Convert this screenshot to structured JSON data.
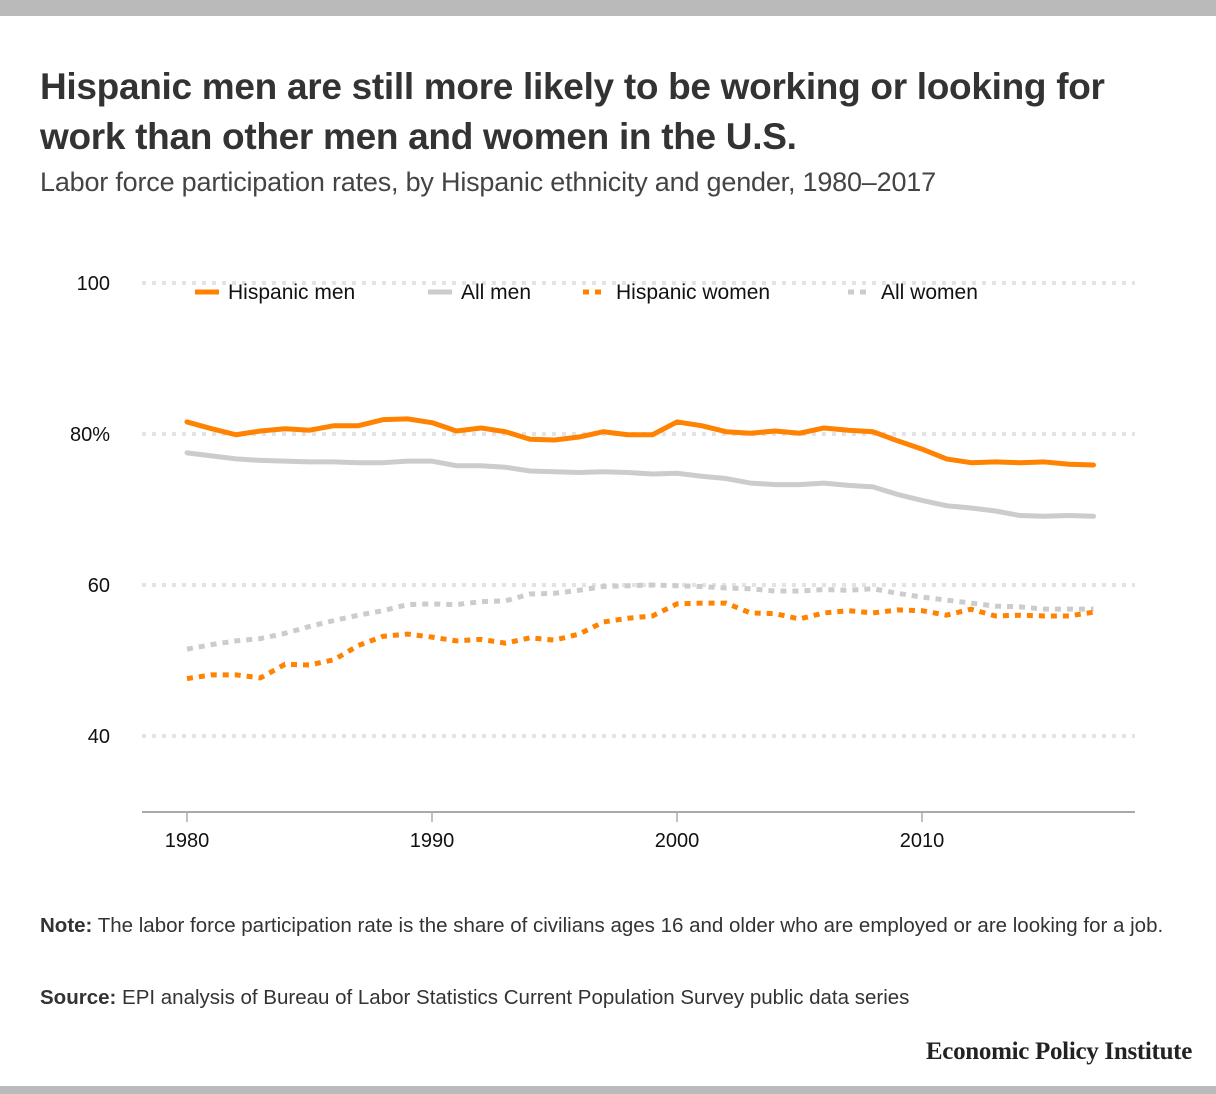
{
  "header": {
    "title": "Hispanic men are still more likely to be working or looking for work than other men and women in the U.S.",
    "subtitle": "Labor force participation rates, by Hispanic ethnicity and gender, 1980–2017"
  },
  "footer": {
    "note_label": "Note:",
    "note_text": " The labor force participation rate is the share of civilians ages 16 and older who are employed or are looking for a job.",
    "source_label": "Source:",
    "source_text": " EPI analysis of Bureau of Labor Statistics Current Population Survey public data series",
    "brand": "Economic Policy Institute"
  },
  "chart_data": {
    "type": "line",
    "title": "Hispanic men are still more likely to be working or looking for work than other men and women in the U.S.",
    "subtitle": "Labor force participation rates, by Hispanic ethnicity and gender, 1980–2017",
    "xlabel": "",
    "ylabel": "",
    "x": [
      1980,
      1981,
      1982,
      1983,
      1984,
      1985,
      1986,
      1987,
      1988,
      1989,
      1990,
      1991,
      1992,
      1993,
      1994,
      1995,
      1996,
      1997,
      1998,
      1999,
      2000,
      2001,
      2002,
      2003,
      2004,
      2005,
      2006,
      2007,
      2008,
      2009,
      2010,
      2011,
      2012,
      2013,
      2014,
      2015,
      2016,
      2017
    ],
    "xlim": [
      1978.2,
      2018.7
    ],
    "ylim": [
      30,
      100
    ],
    "x_ticks": [
      {
        "value": 1980,
        "label": "1980"
      },
      {
        "value": 1990,
        "label": "1990"
      },
      {
        "value": 2000,
        "label": "2000"
      },
      {
        "value": 2010,
        "label": "2010"
      }
    ],
    "y_ticks": [
      {
        "value": 40,
        "label": "40"
      },
      {
        "value": 60,
        "label": "60"
      },
      {
        "value": 80,
        "label": "80%"
      },
      {
        "value": 100,
        "label": "100"
      }
    ],
    "grid": true,
    "legend_position": "top",
    "series": [
      {
        "name": "Hispanic men",
        "color": "#ff8200",
        "style": "solid",
        "values": [
          81.6,
          80.7,
          79.9,
          80.4,
          80.7,
          80.5,
          81.1,
          81.1,
          81.9,
          82.0,
          81.5,
          80.4,
          80.8,
          80.3,
          79.3,
          79.2,
          79.6,
          80.3,
          79.9,
          79.9,
          81.6,
          81.1,
          80.3,
          80.1,
          80.4,
          80.1,
          80.8,
          80.5,
          80.3,
          79.1,
          78.0,
          76.7,
          76.2,
          76.3,
          76.2,
          76.3,
          76.0,
          75.9
        ]
      },
      {
        "name": "All men",
        "color": "#cccccc",
        "style": "solid",
        "values": [
          77.5,
          77.1,
          76.7,
          76.5,
          76.4,
          76.3,
          76.3,
          76.2,
          76.2,
          76.4,
          76.4,
          75.8,
          75.8,
          75.6,
          75.1,
          75.0,
          74.9,
          75.0,
          74.9,
          74.7,
          74.8,
          74.4,
          74.1,
          73.5,
          73.3,
          73.3,
          73.5,
          73.2,
          73.0,
          72.0,
          71.2,
          70.5,
          70.2,
          69.8,
          69.2,
          69.1,
          69.2,
          69.1
        ]
      },
      {
        "name": "Hispanic women",
        "color": "#ff8200",
        "style": "dotted",
        "values": [
          47.6,
          48.1,
          48.1,
          47.7,
          49.5,
          49.4,
          50.1,
          52.0,
          53.2,
          53.5,
          53.1,
          52.6,
          52.8,
          52.3,
          53.0,
          52.7,
          53.5,
          55.1,
          55.6,
          55.9,
          57.5,
          57.6,
          57.6,
          56.3,
          56.2,
          55.5,
          56.3,
          56.6,
          56.3,
          56.7,
          56.6,
          56.0,
          56.8,
          55.9,
          56.0,
          55.9,
          55.9,
          56.4
        ]
      },
      {
        "name": "All women",
        "color": "#cccccc",
        "style": "dotted",
        "values": [
          51.5,
          52.1,
          52.6,
          52.9,
          53.6,
          54.5,
          55.3,
          56.0,
          56.6,
          57.4,
          57.5,
          57.4,
          57.8,
          57.9,
          58.8,
          58.9,
          59.3,
          59.8,
          59.9,
          60.0,
          59.9,
          59.8,
          59.6,
          59.5,
          59.2,
          59.2,
          59.4,
          59.3,
          59.5,
          58.9,
          58.4,
          58.0,
          57.6,
          57.2,
          57.1,
          56.8,
          56.8,
          56.8
        ]
      }
    ]
  }
}
